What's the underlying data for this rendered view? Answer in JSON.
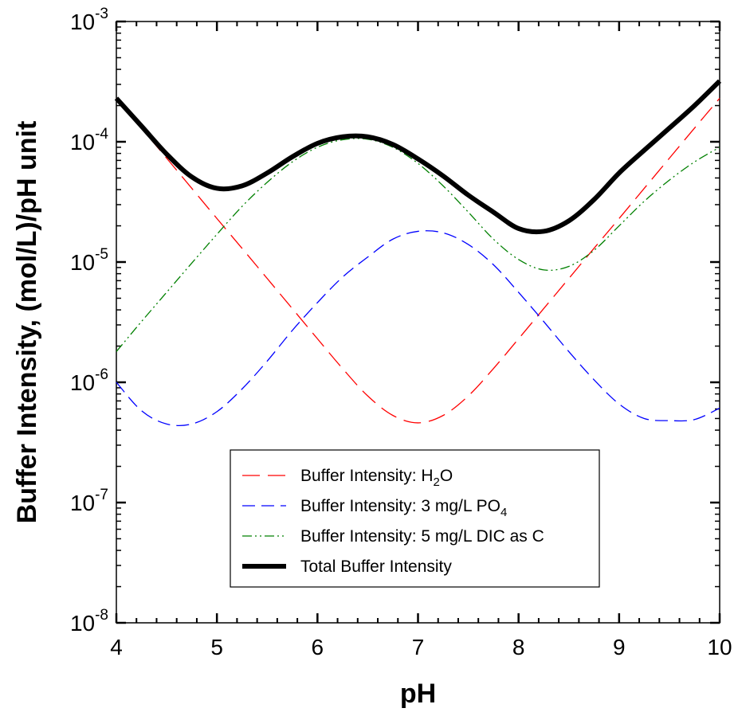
{
  "chart_data": {
    "type": "line",
    "xlabel": "pH",
    "ylabel": "Buffer Intensity, (mol/L)/pH unit",
    "xlim": [
      4,
      10
    ],
    "ylim": [
      1e-08,
      0.001
    ],
    "yscale": "log",
    "x_ticks": [
      4,
      5,
      6,
      7,
      8,
      9,
      10
    ],
    "x_tick_labels": [
      "4",
      "5",
      "6",
      "7",
      "8",
      "9",
      "10"
    ],
    "y_ticks": [
      {
        "value": 1e-08,
        "base": "10",
        "exp": "-8"
      },
      {
        "value": 1e-07,
        "base": "10",
        "exp": "-7"
      },
      {
        "value": 1e-06,
        "base": "10",
        "exp": "-6"
      },
      {
        "value": 1e-05,
        "base": "10",
        "exp": "-5"
      },
      {
        "value": 0.0001,
        "base": "10",
        "exp": "-4"
      },
      {
        "value": 0.001,
        "base": "10",
        "exp": "-3"
      }
    ],
    "grid": false,
    "legend_position": "lower-center",
    "series": [
      {
        "name": "Buffer Intensity: H2O",
        "legend": {
          "pre": "Buffer Intensity: H",
          "sub": "2",
          "post": "O"
        },
        "color": "#ff0000",
        "style": "long-dash",
        "x": [
          4.0,
          4.25,
          4.5,
          4.75,
          5.0,
          5.25,
          5.5,
          5.75,
          6.0,
          6.25,
          6.5,
          6.75,
          7.0,
          7.25,
          7.5,
          7.75,
          8.0,
          8.25,
          8.5,
          8.75,
          9.0,
          9.25,
          9.5,
          9.75,
          10.0
        ],
        "y": [
          0.00023,
          0.00013,
          7.3e-05,
          4.1e-05,
          2.3e-05,
          1.3e-05,
          7.3e-06,
          4.1e-06,
          2.3e-06,
          1.3e-06,
          7.7e-07,
          5.3e-07,
          4.6e-07,
          5.3e-07,
          7.7e-07,
          1.3e-06,
          2.3e-06,
          4.1e-06,
          7.3e-06,
          1.3e-05,
          2.3e-05,
          4.1e-05,
          7.3e-05,
          0.00013,
          0.00023
        ]
      },
      {
        "name": "Buffer Intensity: 3 mg/L PO4",
        "legend": {
          "pre": "Buffer Intensity: 3 mg/L PO",
          "sub": "4",
          "post": ""
        },
        "color": "#0000ff",
        "style": "dash",
        "x": [
          4.0,
          4.25,
          4.5,
          4.75,
          5.0,
          5.25,
          5.5,
          5.75,
          6.0,
          6.25,
          6.5,
          6.75,
          7.0,
          7.25,
          7.5,
          7.75,
          8.0,
          8.25,
          8.5,
          8.75,
          9.0,
          9.25,
          9.5,
          9.75,
          10.0
        ],
        "y": [
          1e-06,
          5.8e-07,
          4.5e-07,
          4.5e-07,
          5.7e-07,
          8.8e-07,
          1.5e-06,
          2.7e-06,
          4.6e-06,
          7.5e-06,
          1.1e-05,
          1.55e-05,
          1.8e-05,
          1.75e-05,
          1.4e-05,
          9.5e-06,
          5.6e-06,
          3.2e-06,
          1.8e-06,
          1.05e-06,
          6.6e-07,
          5e-07,
          4.8e-07,
          4.9e-07,
          6.1e-07
        ]
      },
      {
        "name": "Buffer Intensity: 5 mg/L DIC as C",
        "legend": {
          "pre": "Buffer Intensity: 5 mg/L DIC as C",
          "sub": "",
          "post": ""
        },
        "color": "#008000",
        "style": "dash-dot-dot",
        "x": [
          4.0,
          4.25,
          4.5,
          4.75,
          5.0,
          5.25,
          5.5,
          5.75,
          6.0,
          6.25,
          6.5,
          6.75,
          7.0,
          7.25,
          7.5,
          7.75,
          8.0,
          8.25,
          8.5,
          8.75,
          9.0,
          9.25,
          9.5,
          9.75,
          10.0
        ],
        "y": [
          1.8e-06,
          3.2e-06,
          5.6e-06,
          9.8e-06,
          1.7e-05,
          2.9e-05,
          4.6e-05,
          6.8e-05,
          9e-05,
          0.000104,
          0.000105,
          9e-05,
          6.6e-05,
          4.3e-05,
          2.6e-05,
          1.55e-05,
          1.05e-05,
          8.6e-06,
          9.2e-06,
          1.25e-05,
          2e-05,
          3.2e-05,
          4.8e-05,
          6.8e-05,
          9e-05
        ]
      },
      {
        "name": "Total Buffer Intensity",
        "legend": {
          "pre": "Total Buffer Intensity",
          "sub": "",
          "post": ""
        },
        "color": "#000000",
        "style": "solid-thick",
        "x": [
          4.0,
          4.25,
          4.5,
          4.75,
          5.0,
          5.25,
          5.5,
          5.75,
          6.0,
          6.25,
          6.5,
          6.75,
          7.0,
          7.25,
          7.5,
          7.75,
          8.0,
          8.25,
          8.5,
          8.75,
          9.0,
          9.25,
          9.5,
          9.75,
          10.0
        ],
        "y": [
          0.00023,
          0.000135,
          7.9e-05,
          5.1e-05,
          4.1e-05,
          4.3e-05,
          5.5e-05,
          7.5e-05,
          9.7e-05,
          0.00011,
          0.00011,
          9.5e-05,
          7.2e-05,
          5.2e-05,
          3.6e-05,
          2.6e-05,
          1.9e-05,
          1.8e-05,
          2.2e-05,
          3.3e-05,
          5.5e-05,
          8.5e-05,
          0.00013,
          0.0002,
          0.00032
        ]
      }
    ]
  }
}
